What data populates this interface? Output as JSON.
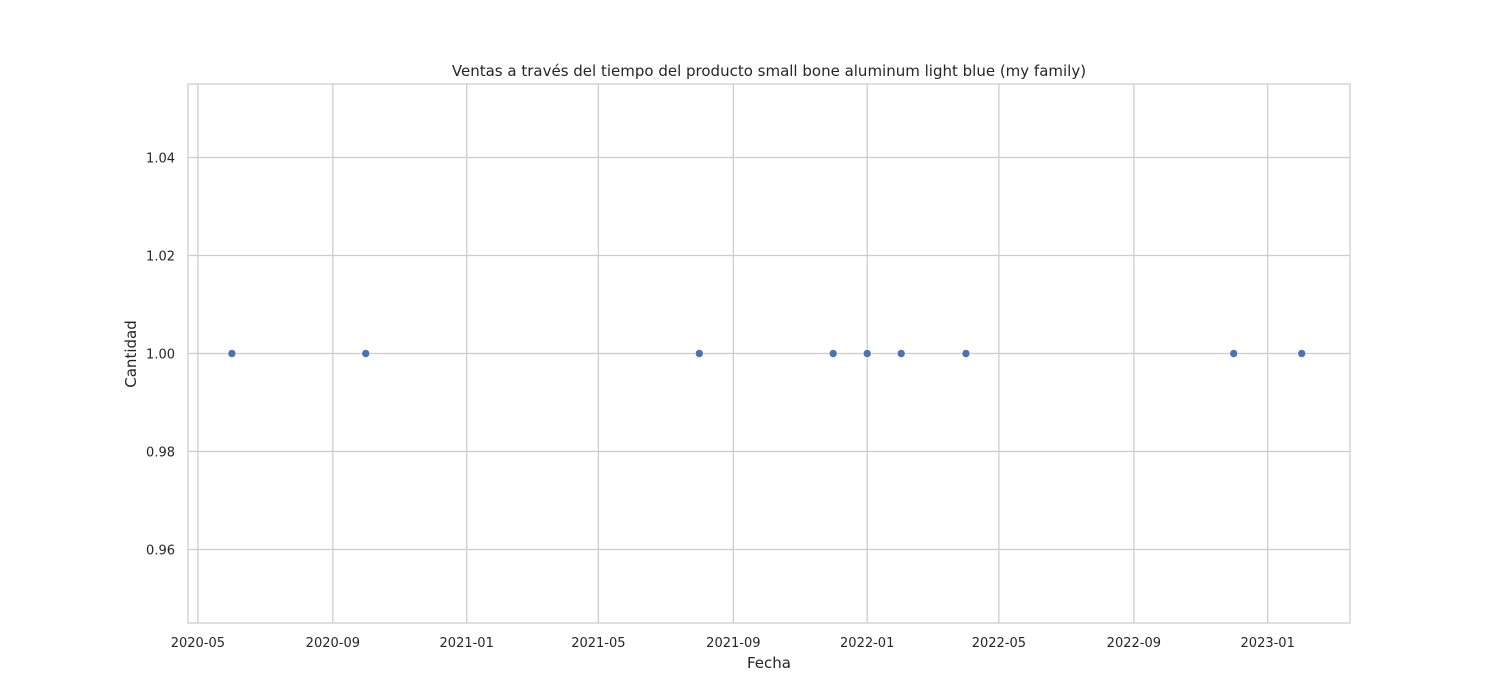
{
  "chart_data": {
    "type": "scatter",
    "title": "Ventas a través del tiempo del producto small bone aluminum light blue (my family)",
    "xlabel": "Fecha",
    "ylabel": "Cantidad",
    "x_type": "date",
    "xlim": [
      "2020-04-22",
      "2023-03-17"
    ],
    "ylim": [
      0.945,
      1.055
    ],
    "x_ticks": [
      {
        "date": "2020-05-01",
        "label": "2020-05"
      },
      {
        "date": "2020-09-01",
        "label": "2020-09"
      },
      {
        "date": "2021-01-01",
        "label": "2021-01"
      },
      {
        "date": "2021-05-01",
        "label": "2021-05"
      },
      {
        "date": "2021-09-01",
        "label": "2021-09"
      },
      {
        "date": "2022-01-01",
        "label": "2022-01"
      },
      {
        "date": "2022-05-01",
        "label": "2022-05"
      },
      {
        "date": "2022-09-01",
        "label": "2022-09"
      },
      {
        "date": "2023-01-01",
        "label": "2023-01"
      }
    ],
    "y_ticks": [
      {
        "value": 0.96,
        "label": "0.96"
      },
      {
        "value": 0.98,
        "label": "0.98"
      },
      {
        "value": 1.0,
        "label": "1.00"
      },
      {
        "value": 1.02,
        "label": "1.02"
      },
      {
        "value": 1.04,
        "label": "1.04"
      }
    ],
    "grid": true,
    "marker_color": "#4c72b0",
    "grid_color": "#cccccc",
    "points": [
      {
        "x": "2020-06-01",
        "y": 1
      },
      {
        "x": "2020-10-01",
        "y": 1
      },
      {
        "x": "2021-08-01",
        "y": 1
      },
      {
        "x": "2021-12-01",
        "y": 1
      },
      {
        "x": "2022-01-01",
        "y": 1
      },
      {
        "x": "2022-02-01",
        "y": 1
      },
      {
        "x": "2022-04-01",
        "y": 1
      },
      {
        "x": "2022-12-01",
        "y": 1
      },
      {
        "x": "2023-02-01",
        "y": 1
      }
    ]
  }
}
